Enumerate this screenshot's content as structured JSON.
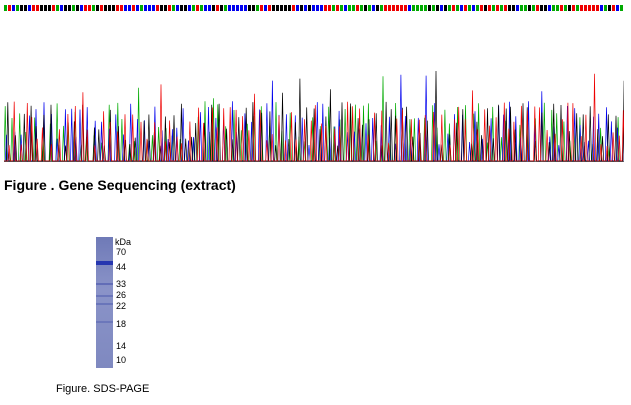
{
  "figure1": {
    "caption": "Figure . Gene Sequencing (extract)",
    "trace_colors": [
      "#00aa00",
      "#0000ee",
      "#000000",
      "#ee0000"
    ]
  },
  "figure2": {
    "caption": "Figure. SDS-PAGE",
    "unit_label": "kDa",
    "markers": [
      "70",
      "44",
      "33",
      "26",
      "22",
      "18",
      "14",
      "10"
    ]
  }
}
